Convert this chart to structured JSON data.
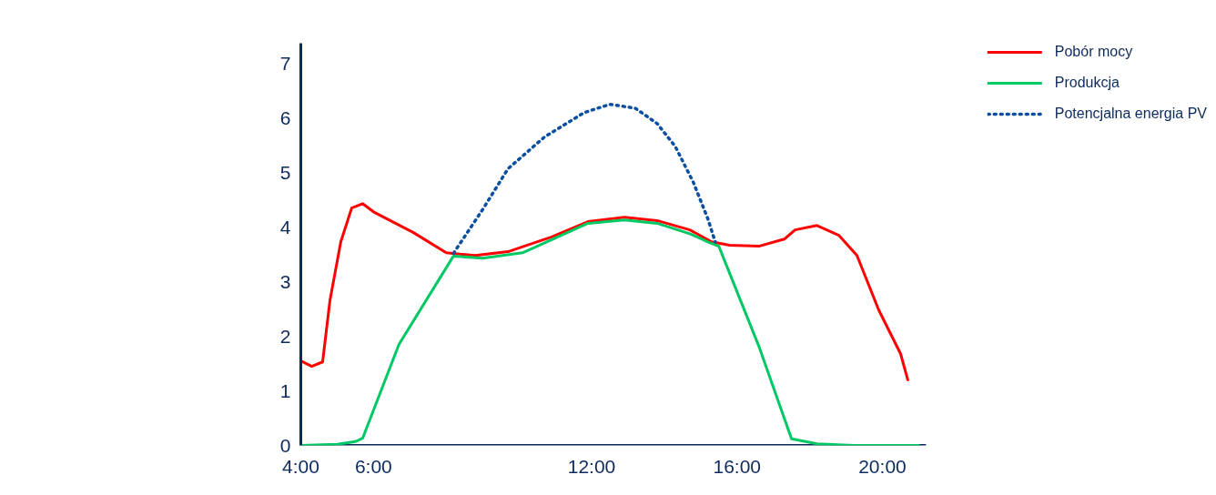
{
  "chart_data": {
    "type": "line",
    "xlim": [
      4,
      21.2
    ],
    "ylim": [
      0,
      7.37
    ],
    "xticks": [
      {
        "value": 4,
        "label": "4:00"
      },
      {
        "value": 6,
        "label": "6:00"
      },
      {
        "value": 12,
        "label": "12:00"
      },
      {
        "value": 16,
        "label": "16:00"
      },
      {
        "value": 20,
        "label": "20:00"
      }
    ],
    "yticks": [
      0,
      1,
      2,
      3,
      4,
      5,
      6,
      7
    ],
    "grid": false,
    "legend": "top right",
    "marker": "none",
    "series": [
      {
        "name": "Pobór mocy",
        "color": "#ff0000",
        "line_style": "solid",
        "x": [
          4,
          4.3,
          4.6,
          4.8,
          5.1,
          5.4,
          5.7,
          6,
          7.1,
          8,
          8.8,
          9.7,
          10.9,
          11.9,
          12.9,
          13.8,
          14.7,
          15.3,
          15.8,
          16.6,
          17.3,
          17.6,
          18.2,
          18.8,
          19.3,
          19.9,
          20.5,
          20.7
        ],
        "values": [
          1.55,
          1.45,
          1.53,
          2.65,
          3.73,
          4.35,
          4.43,
          4.28,
          3.9,
          3.53,
          3.48,
          3.55,
          3.82,
          4.1,
          4.18,
          4.12,
          3.95,
          3.73,
          3.67,
          3.65,
          3.78,
          3.95,
          4.03,
          3.85,
          3.48,
          2.48,
          1.68,
          1.2
        ]
      },
      {
        "name": "Produkcja",
        "color": "#00c864",
        "line_style": "solid",
        "x": [
          4,
          5,
          5.5,
          5.7,
          6.7,
          8.2,
          9,
          10.1,
          11.9,
          12.9,
          13.8,
          14.7,
          15.2,
          15.5,
          16.6,
          17.5,
          18.2,
          19.2,
          21
        ],
        "values": [
          0,
          0.02,
          0.07,
          0.13,
          1.85,
          3.47,
          3.43,
          3.53,
          4.07,
          4.13,
          4.07,
          3.88,
          3.73,
          3.65,
          1.82,
          0.12,
          0.03,
          0,
          0
        ]
      },
      {
        "name": "Potencjalna energia PV",
        "color": "#0b4fa0",
        "line_style": "dotted",
        "x": [
          8.2,
          9,
          9.7,
          10.7,
          11.8,
          12.5,
          13.2,
          13.8,
          14.3,
          14.8,
          15.2,
          15.4
        ],
        "values": [
          3.52,
          4.32,
          5.07,
          5.65,
          6.1,
          6.25,
          6.18,
          5.9,
          5.48,
          4.82,
          4.15,
          3.73
        ]
      }
    ]
  }
}
